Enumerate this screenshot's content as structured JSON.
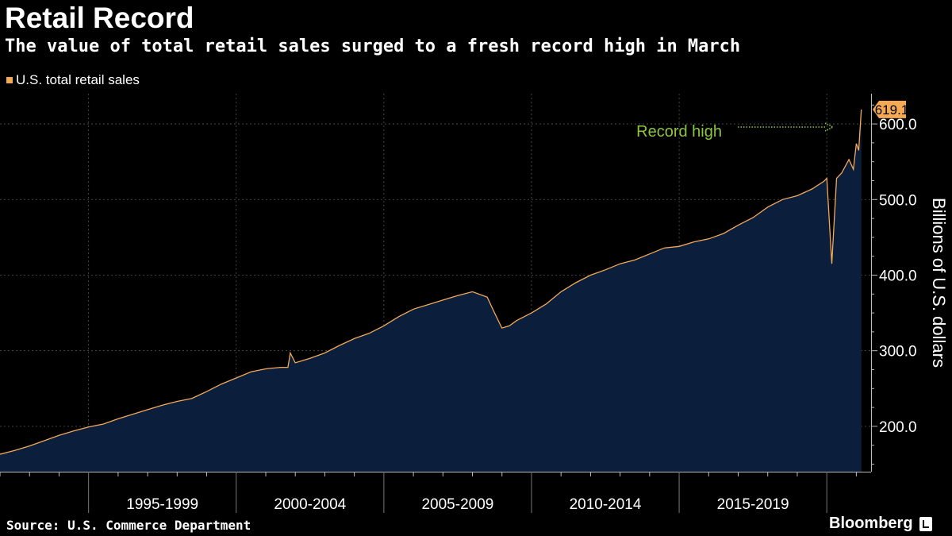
{
  "header": {
    "title": "Retail Record",
    "subtitle": "The value of total retail sales surged to a fresh record high in March"
  },
  "legend": {
    "label": "U.S. total retail sales",
    "swatch_color": "#F4A955"
  },
  "footer": {
    "source": "Source: U.S. Commerce Department",
    "brand": "Bloomberg"
  },
  "chart_data": {
    "type": "area",
    "ylabel": "Billions of U.S. dollars",
    "ylim": [
      140,
      640
    ],
    "y_ticks": [
      200,
      300,
      400,
      500,
      600
    ],
    "y_tick_labels": [
      "200.0",
      "300.0",
      "400.0",
      "500.0",
      "600.0"
    ],
    "x_range": [
      1992.0,
      2021.5
    ],
    "x_period_labels": [
      "1995-1999",
      "2000-2004",
      "2005-2009",
      "2010-2014",
      "2015-2019"
    ],
    "x_period_starts": [
      1995,
      2000,
      2005,
      2010,
      2015,
      2020
    ],
    "grid": true,
    "legend_position": "top-left",
    "colors": {
      "line": "#F4A955",
      "fill": "#0B1E3C",
      "annotation": "#8CC63F",
      "grid": "#555555"
    },
    "annotation": {
      "text": "Record high"
    },
    "last_value_label": "619.1",
    "series": [
      {
        "name": "U.S. total retail sales",
        "x": [
          1992.0,
          1992.5,
          1993.0,
          1993.5,
          1994.0,
          1994.5,
          1995.0,
          1995.5,
          1996.0,
          1996.5,
          1997.0,
          1997.5,
          1998.0,
          1998.5,
          1999.0,
          1999.5,
          2000.0,
          2000.5,
          2001.0,
          2001.5,
          2001.75,
          2001.83,
          2002.0,
          2002.5,
          2003.0,
          2003.5,
          2004.0,
          2004.5,
          2005.0,
          2005.5,
          2006.0,
          2006.5,
          2007.0,
          2007.5,
          2008.0,
          2008.5,
          2008.75,
          2009.0,
          2009.25,
          2009.5,
          2010.0,
          2010.5,
          2011.0,
          2011.5,
          2012.0,
          2012.5,
          2013.0,
          2013.5,
          2014.0,
          2014.5,
          2015.0,
          2015.5,
          2016.0,
          2016.5,
          2017.0,
          2017.5,
          2018.0,
          2018.5,
          2019.0,
          2019.5,
          2019.9,
          2020.0,
          2020.17,
          2020.33,
          2020.5,
          2020.75,
          2020.9,
          2021.0,
          2021.08,
          2021.17
        ],
        "values": [
          163,
          168,
          174,
          181,
          188,
          194,
          199,
          203,
          210,
          216,
          222,
          228,
          233,
          237,
          246,
          256,
          264,
          272,
          276,
          278,
          278,
          297,
          284,
          290,
          297,
          307,
          316,
          323,
          333,
          345,
          355,
          361,
          367,
          373,
          378,
          371,
          350,
          330,
          333,
          340,
          350,
          362,
          378,
          390,
          400,
          407,
          415,
          420,
          428,
          436,
          438,
          444,
          448,
          455,
          466,
          476,
          490,
          500,
          505,
          514,
          524,
          528,
          415,
          528,
          535,
          553,
          540,
          574,
          565,
          619.1
        ]
      }
    ]
  }
}
